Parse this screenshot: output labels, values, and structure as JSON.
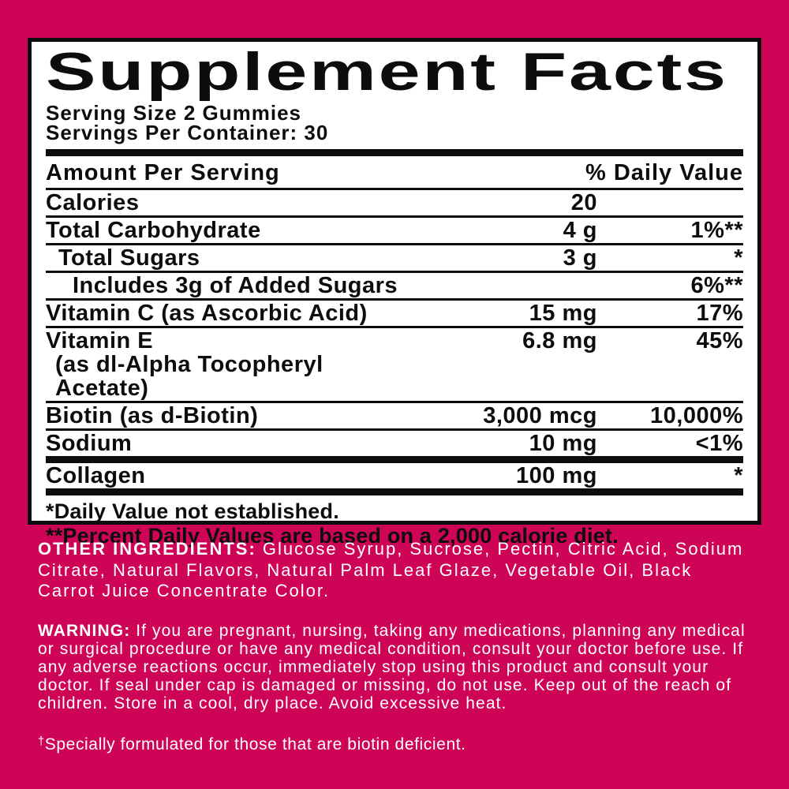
{
  "colors": {
    "background": "#CE0556",
    "panel_background": "#FFFFFF",
    "ink": "#0D0D0D",
    "light_text": "#FFFFFF"
  },
  "supplement_facts": {
    "title": "Supplement Facts",
    "serving_size": "Serving Size 2 Gummies",
    "servings_per_container": "Servings Per Container: 30",
    "columns": {
      "amount_header": "Amount Per Serving",
      "dv_header": "% Daily Value"
    },
    "rows": [
      {
        "name": "Calories",
        "amount": "20",
        "dv": ""
      },
      {
        "name": "Total Carbohydrate",
        "amount": "4 g",
        "dv": "1%**"
      },
      {
        "name": "Total Sugars",
        "amount": "3 g",
        "dv": "*"
      },
      {
        "name": "Includes 3g of Added Sugars",
        "amount": "",
        "dv": "6%**"
      },
      {
        "name": "Vitamin C (as Ascorbic Acid)",
        "amount": "15 mg",
        "dv": "17%"
      },
      {
        "name": "Vitamin E",
        "name_line2": "(as dl-Alpha Tocopheryl Acetate)",
        "amount": "6.8 mg",
        "dv": "45%"
      },
      {
        "name": "Biotin (as d-Biotin)",
        "amount": "3,000 mcg",
        "dv": "10,000%"
      },
      {
        "name": "Sodium",
        "amount": "10 mg",
        "dv": "<1%"
      }
    ],
    "collagen_row": {
      "name": "Collagen",
      "amount": "100 mg",
      "dv": "*"
    },
    "footnotes": {
      "dv_not_established": "*Daily Value not established.",
      "percent_dv": "**Percent Daily Values are based on a 2,000 calorie diet."
    }
  },
  "other_ingredients": {
    "label": "OTHER INGREDIENTS:",
    "text": "Glucose Syrup, Sucrose, Pectin, Citric Acid, Sodium Citrate, Natural Flavors, Natural Palm Leaf Glaze, Vegetable Oil, Black Carrot Juice Concentrate Color."
  },
  "warning": {
    "label": "WARNING:",
    "text": "If you are pregnant, nursing, taking any medications, planning any medical or surgical procedure or have any medical condition, consult your doctor before use. If any adverse reactions occur, immediately stop using this product and consult your doctor. If seal under cap is damaged or missing, do not use. Keep out of the reach of children. Store in a cool, dry place. Avoid excessive heat."
  },
  "biotin_note": {
    "symbol": "†",
    "text": "Specially formulated for those that are biotin deficient."
  }
}
